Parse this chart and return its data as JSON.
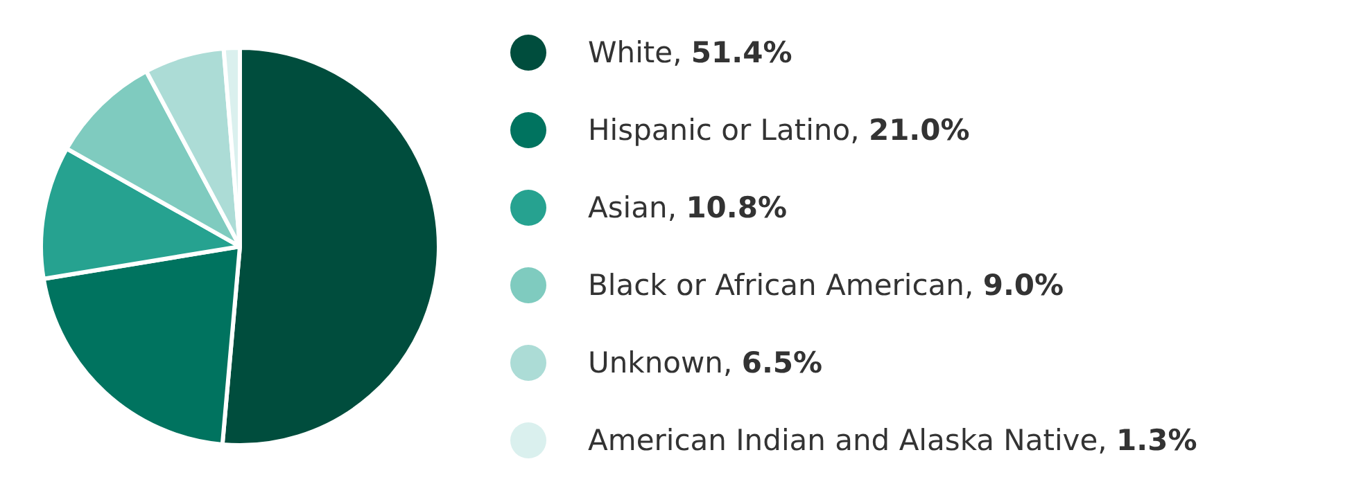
{
  "chart_data": {
    "type": "pie",
    "categories": [
      "White",
      "Hispanic or Latino",
      "Asian",
      "Black or African American",
      "Unknown",
      "American Indian and Alaska Native"
    ],
    "values": [
      51.4,
      21.0,
      10.8,
      9.0,
      6.5,
      1.3
    ],
    "value_labels": [
      ", 51.4%",
      ", 21.0%",
      ", 10.8%",
      ", 9.0%",
      ", 6.5%",
      ", 1.3%"
    ],
    "colors": [
      "#004d3d",
      "#00735f",
      "#26a290",
      "#7fcbbf",
      "#acdcd6",
      "#daf0ee"
    ],
    "legend": "right"
  }
}
